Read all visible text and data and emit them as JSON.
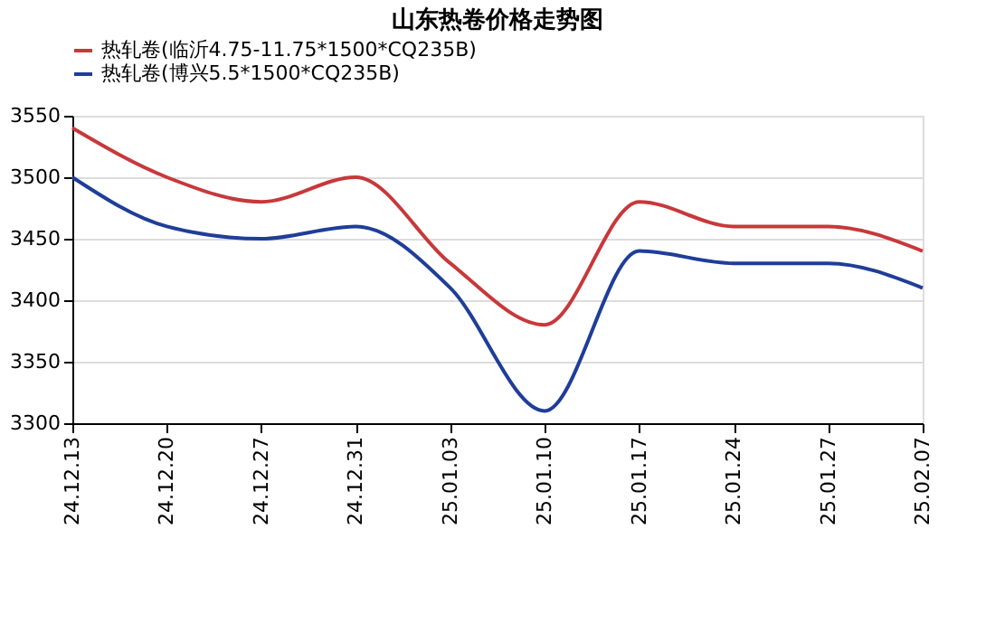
{
  "chart_data": {
    "type": "line",
    "title": "山东热卷价格走势图",
    "categories": [
      "24.12.13",
      "24.12.20",
      "24.12.27",
      "24.12.31",
      "25.01.03",
      "25.01.10",
      "25.01.17",
      "25.01.24",
      "25.01.27",
      "25.02.07"
    ],
    "series": [
      {
        "name": "热轧卷(临沂4.75-11.75*1500*CQ235B)",
        "color": "#c8383a",
        "values": [
          3540,
          3500,
          3480,
          3500,
          3430,
          3380,
          3480,
          3460,
          3460,
          3440
        ]
      },
      {
        "name": "热轧卷(博兴5.5*1500*CQ235B)",
        "color": "#1f3e99",
        "values": [
          3500,
          3460,
          3450,
          3460,
          3410,
          3310,
          3440,
          3430,
          3430,
          3410
        ]
      }
    ],
    "ylim": [
      3300,
      3550
    ],
    "yticks": [
      3300,
      3350,
      3400,
      3450,
      3500,
      3550
    ],
    "grid": "y",
    "legend": "top",
    "marker": "none",
    "line_style": "solid"
  }
}
